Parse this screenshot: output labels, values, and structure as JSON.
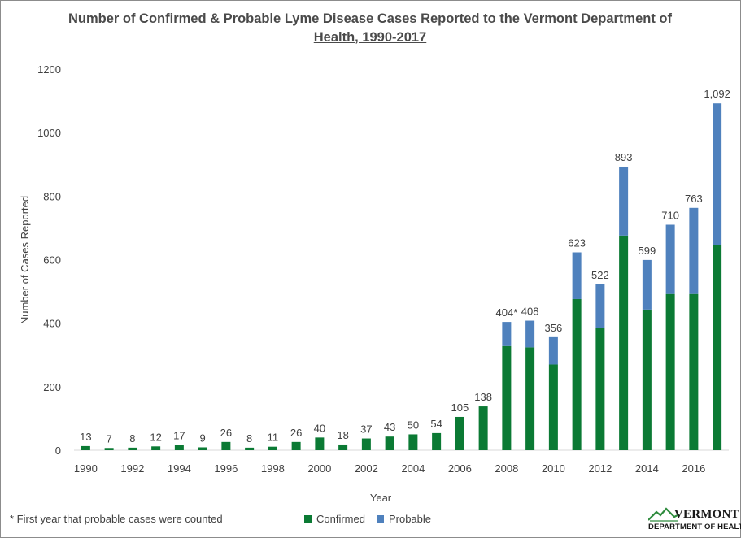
{
  "colors": {
    "confirmed": "#0b7a34",
    "probable": "#4f81bd",
    "text": "#404040"
  },
  "chart_data": {
    "type": "bar",
    "stacked": true,
    "title": "Number of Confirmed & Probable Lyme Disease Cases Reported to the Vermont Department of Health, 1990-2017",
    "xlabel": "Year",
    "ylabel": "Number  of Cases Reported",
    "ylim": [
      0,
      1200
    ],
    "yticks": [
      0,
      200,
      400,
      600,
      800,
      1000,
      1200
    ],
    "categories": [
      "1990",
      "1991",
      "1992",
      "1993",
      "1994",
      "1995",
      "1996",
      "1997",
      "1998",
      "1999",
      "2000",
      "2001",
      "2002",
      "2003",
      "2004",
      "2005",
      "2006",
      "2007",
      "2008",
      "2009",
      "2010",
      "2011",
      "2012",
      "2013",
      "2014",
      "2015",
      "2016",
      "2017"
    ],
    "xtick_labels": [
      "1990",
      "",
      "1992",
      "",
      "1994",
      "",
      "1996",
      "",
      "1998",
      "",
      "2000",
      "",
      "2002",
      "",
      "2004",
      "",
      "2006",
      "",
      "2008",
      "",
      "2010",
      "",
      "2012",
      "",
      "2014",
      "",
      "2016",
      ""
    ],
    "series": [
      {
        "name": "Confirmed",
        "values": [
          13,
          7,
          8,
          12,
          17,
          9,
          26,
          8,
          11,
          26,
          40,
          18,
          37,
          43,
          50,
          54,
          105,
          138,
          328,
          324,
          270,
          476,
          386,
          676,
          443,
          492,
          492,
          645
        ]
      },
      {
        "name": "Probable",
        "values": [
          0,
          0,
          0,
          0,
          0,
          0,
          0,
          0,
          0,
          0,
          0,
          0,
          0,
          0,
          0,
          0,
          0,
          0,
          76,
          84,
          86,
          147,
          136,
          217,
          156,
          218,
          271,
          447
        ]
      }
    ],
    "data_labels": [
      "13",
      "7",
      "8",
      "12",
      "17",
      "9",
      "26",
      "8",
      "11",
      "26",
      "40",
      "18",
      "37",
      "43",
      "50",
      "54",
      "105",
      "138",
      "404*",
      "408",
      "356",
      "623",
      "522",
      "893",
      "599",
      "710",
      "763",
      "1,092"
    ],
    "legend_position": "bottom"
  },
  "footnote": "* First year that probable cases were counted",
  "legend": {
    "confirmed": "Confirmed",
    "probable": "Probable"
  },
  "logo": {
    "name": "VERMONT",
    "dept": "DEPARTMENT OF HEALTH"
  }
}
